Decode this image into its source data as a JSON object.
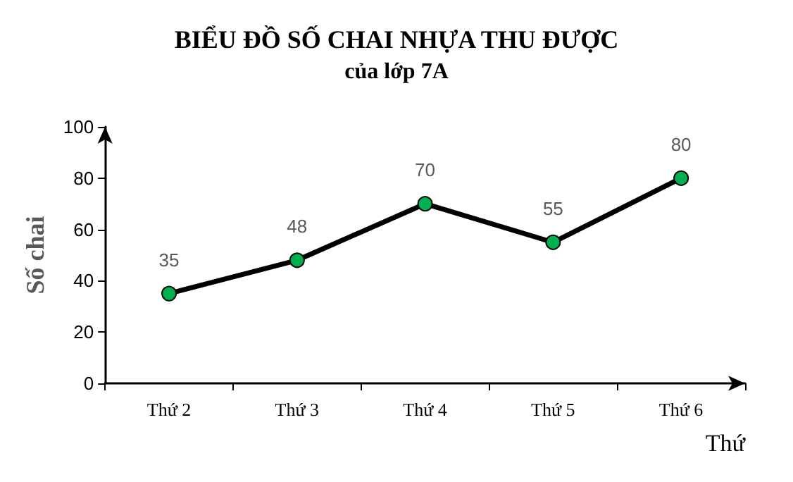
{
  "chart_data": {
    "type": "line",
    "title": "BIỂU ĐỒ SỐ CHAI NHỰA THU ĐƯỢC",
    "subtitle": "của lớp 7A",
    "xlabel": "Thứ",
    "ylabel": "Số chai",
    "categories": [
      "Thứ 2",
      "Thứ 3",
      "Thứ 4",
      "Thứ 5",
      "Thứ 6"
    ],
    "series": [
      {
        "color": "#000000",
        "colors": [
          "#00b050",
          "#00b050",
          "#00b050",
          "#00b050",
          "#00b050"
        ],
        "values": [
          35,
          48,
          70,
          55,
          80
        ]
      }
    ],
    "ylim": [
      0,
      100
    ],
    "yticks": [
      0,
      20,
      40,
      60,
      80,
      100
    ],
    "grid": false,
    "marker": "circle",
    "line_style": "solid",
    "data_labels": true
  }
}
